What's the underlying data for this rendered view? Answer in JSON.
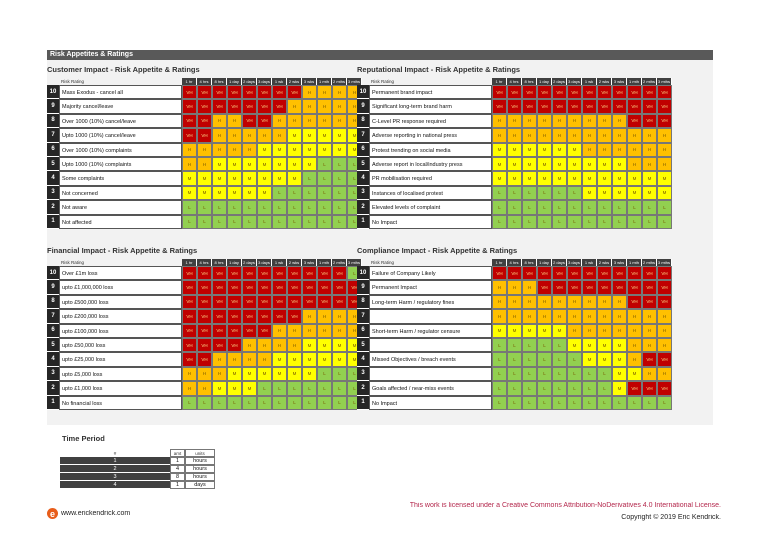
{
  "header": {
    "title": "Risk Appetites & Ratings"
  },
  "columns": [
    "1 hr",
    "4 hrs",
    "8 hrs",
    "1 day",
    "2 days",
    "3 days",
    "1 wk",
    "2 wks",
    "3 wks",
    "1 mth",
    "2 mths",
    "3 mths"
  ],
  "rating_header": "Risk Rating",
  "level_colors": {
    "VH": "#c00000",
    "H": "#ffc000",
    "M": "#ffff00",
    "L": "#92d050"
  },
  "matrices": [
    {
      "title": "Customer Impact - Risk Appetite & Ratings",
      "rows": [
        {
          "rating": "10",
          "label": "Mass Exodus - cancel all",
          "cells": [
            "VH",
            "VH",
            "VH",
            "VH",
            "VH",
            "VH",
            "VH",
            "VH",
            "H",
            "H",
            "H",
            "H"
          ]
        },
        {
          "rating": "9",
          "label": "Majority cancel/leave",
          "cells": [
            "VH",
            "VH",
            "VH",
            "VH",
            "VH",
            "VH",
            "VH",
            "H",
            "H",
            "H",
            "H",
            "H"
          ]
        },
        {
          "rating": "8",
          "label": "Over 1000 (10%) cancel/leave",
          "cells": [
            "VH",
            "VH",
            "H",
            "H",
            "VH",
            "VH",
            "H",
            "H",
            "H",
            "H",
            "H",
            "H"
          ]
        },
        {
          "rating": "7",
          "label": "Upto 1000 (10%) cancel/leave",
          "cells": [
            "VH",
            "VH",
            "H",
            "H",
            "H",
            "H",
            "H",
            "M",
            "M",
            "M",
            "M",
            "M"
          ]
        },
        {
          "rating": "6",
          "label": "Over 1000 (10%) complaints",
          "cells": [
            "H",
            "H",
            "H",
            "H",
            "H",
            "M",
            "M",
            "M",
            "M",
            "M",
            "M",
            "M"
          ]
        },
        {
          "rating": "5",
          "label": "Upto 1000 (10%) complaints",
          "cells": [
            "H",
            "H",
            "M",
            "M",
            "M",
            "M",
            "M",
            "M",
            "M",
            "L",
            "L",
            "L"
          ]
        },
        {
          "rating": "4",
          "label": "Some complaints",
          "cells": [
            "M",
            "M",
            "M",
            "M",
            "M",
            "M",
            "M",
            "M",
            "L",
            "L",
            "L",
            "L"
          ]
        },
        {
          "rating": "3",
          "label": "Not concerned",
          "cells": [
            "M",
            "M",
            "M",
            "M",
            "M",
            "M",
            "L",
            "L",
            "L",
            "L",
            "L",
            "L"
          ]
        },
        {
          "rating": "2",
          "label": "Not aware",
          "cells": [
            "L",
            "L",
            "L",
            "L",
            "L",
            "L",
            "L",
            "L",
            "L",
            "L",
            "L",
            "L"
          ]
        },
        {
          "rating": "1",
          "label": "Not affected",
          "cells": [
            "L",
            "L",
            "L",
            "L",
            "L",
            "L",
            "L",
            "L",
            "L",
            "L",
            "L",
            "L"
          ]
        }
      ]
    },
    {
      "title": "Reputational Impact - Risk Appetite & Ratings",
      "rows": [
        {
          "rating": "10",
          "label": "Permanent brand impact",
          "cells": [
            "VH",
            "VH",
            "VH",
            "VH",
            "VH",
            "VH",
            "VH",
            "VH",
            "VH",
            "VH",
            "VH",
            "VH"
          ]
        },
        {
          "rating": "9",
          "label": "Significant long-term brand harm",
          "cells": [
            "VH",
            "VH",
            "VH",
            "VH",
            "VH",
            "VH",
            "VH",
            "VH",
            "VH",
            "VH",
            "VH",
            "VH"
          ]
        },
        {
          "rating": "8",
          "label": "C-Level PR response required",
          "cells": [
            "H",
            "H",
            "H",
            "H",
            "H",
            "H",
            "H",
            "H",
            "H",
            "VH",
            "VH",
            "VH"
          ]
        },
        {
          "rating": "7",
          "label": "Adverse reporting in national press",
          "cells": [
            "H",
            "H",
            "H",
            "H",
            "H",
            "H",
            "H",
            "H",
            "H",
            "H",
            "H",
            "H"
          ]
        },
        {
          "rating": "6",
          "label": "Protest trending on social media",
          "cells": [
            "M",
            "M",
            "M",
            "M",
            "M",
            "M",
            "H",
            "H",
            "H",
            "H",
            "H",
            "H"
          ]
        },
        {
          "rating": "5",
          "label": "Adverse report in local/industry press",
          "cells": [
            "M",
            "M",
            "M",
            "M",
            "M",
            "M",
            "M",
            "M",
            "M",
            "H",
            "H",
            "H"
          ]
        },
        {
          "rating": "4",
          "label": "PR mobilisation required",
          "cells": [
            "M",
            "M",
            "M",
            "M",
            "M",
            "M",
            "M",
            "M",
            "M",
            "M",
            "M",
            "M"
          ]
        },
        {
          "rating": "3",
          "label": "Instances of localised protest",
          "cells": [
            "L",
            "L",
            "L",
            "L",
            "L",
            "L",
            "M",
            "M",
            "M",
            "M",
            "M",
            "M"
          ]
        },
        {
          "rating": "2",
          "label": "Elevated levels of complaint",
          "cells": [
            "L",
            "L",
            "L",
            "L",
            "L",
            "L",
            "L",
            "L",
            "L",
            "L",
            "L",
            "L"
          ]
        },
        {
          "rating": "1",
          "label": "No Impact",
          "cells": [
            "L",
            "L",
            "L",
            "L",
            "L",
            "L",
            "L",
            "L",
            "L",
            "L",
            "L",
            "L"
          ]
        }
      ]
    },
    {
      "title": "Financial Impact - Risk Appetite & Ratings",
      "rows": [
        {
          "rating": "10",
          "label": "Over £1m loss",
          "cells": [
            "VH",
            "VH",
            "VH",
            "VH",
            "VH",
            "VH",
            "VH",
            "VH",
            "VH",
            "VH",
            "VH",
            "L"
          ]
        },
        {
          "rating": "9",
          "label": "upto £1,000,000 loss",
          "cells": [
            "VH",
            "VH",
            "VH",
            "VH",
            "VH",
            "VH",
            "VH",
            "VH",
            "VH",
            "VH",
            "VH",
            "VH"
          ]
        },
        {
          "rating": "8",
          "label": "upto £500,000 loss",
          "cells": [
            "VH",
            "VH",
            "VH",
            "VH",
            "VH",
            "VH",
            "VH",
            "VH",
            "VH",
            "VH",
            "VH",
            "VH"
          ]
        },
        {
          "rating": "7",
          "label": "upto £200,000 loss",
          "cells": [
            "VH",
            "VH",
            "VH",
            "VH",
            "VH",
            "VH",
            "VH",
            "VH",
            "H",
            "H",
            "H",
            "H"
          ]
        },
        {
          "rating": "6",
          "label": "upto £100,000 loss",
          "cells": [
            "VH",
            "VH",
            "VH",
            "VH",
            "VH",
            "VH",
            "H",
            "H",
            "H",
            "H",
            "H",
            "H"
          ]
        },
        {
          "rating": "5",
          "label": "upto £50,000 loss",
          "cells": [
            "VH",
            "VH",
            "VH",
            "VH",
            "H",
            "H",
            "H",
            "H",
            "M",
            "M",
            "M",
            "M"
          ]
        },
        {
          "rating": "4",
          "label": "upto £25,000 loss",
          "cells": [
            "VH",
            "VH",
            "H",
            "H",
            "H",
            "H",
            "M",
            "M",
            "M",
            "M",
            "M",
            "M"
          ]
        },
        {
          "rating": "3",
          "label": "upto £5,000 loss",
          "cells": [
            "H",
            "H",
            "H",
            "M",
            "M",
            "M",
            "M",
            "M",
            "M",
            "L",
            "L",
            "L"
          ]
        },
        {
          "rating": "2",
          "label": "upto £1,000 loss",
          "cells": [
            "H",
            "H",
            "M",
            "M",
            "M",
            "L",
            "L",
            "L",
            "L",
            "L",
            "L",
            "L"
          ]
        },
        {
          "rating": "1",
          "label": "No financial loss",
          "cells": [
            "L",
            "L",
            "L",
            "L",
            "L",
            "L",
            "L",
            "L",
            "L",
            "L",
            "L",
            "L"
          ]
        }
      ]
    },
    {
      "title": "Compliance Impact - Risk Appetite & Ratings",
      "rows": [
        {
          "rating": "10",
          "label": "Failure of Company Likely",
          "cells": [
            "VH",
            "VH",
            "VH",
            "VH",
            "VH",
            "VH",
            "VH",
            "VH",
            "VH",
            "VH",
            "VH",
            "VH"
          ]
        },
        {
          "rating": "9",
          "label": "Permanent Impact",
          "cells": [
            "H",
            "H",
            "H",
            "VH",
            "VH",
            "VH",
            "VH",
            "VH",
            "VH",
            "VH",
            "VH",
            "VH"
          ]
        },
        {
          "rating": "8",
          "label": "Long-term Harm / regulatory fines",
          "cells": [
            "H",
            "H",
            "H",
            "H",
            "H",
            "H",
            "H",
            "H",
            "H",
            "VH",
            "VH",
            "VH"
          ]
        },
        {
          "rating": "7",
          "label": null,
          "cells": [
            "H",
            "H",
            "H",
            "H",
            "H",
            "H",
            "H",
            "H",
            "H",
            "H",
            "H",
            "H"
          ]
        },
        {
          "rating": "6",
          "label": "Short-term Harm / regulator censure",
          "cells": [
            "M",
            "M",
            "M",
            "M",
            "M",
            "H",
            "H",
            "H",
            "H",
            "H",
            "H",
            "H"
          ]
        },
        {
          "rating": "5",
          "label": null,
          "cells": [
            "L",
            "L",
            "L",
            "L",
            "L",
            "M",
            "M",
            "M",
            "M",
            "H",
            "H",
            "H"
          ]
        },
        {
          "rating": "4",
          "label": "Missed Objectives / breach events",
          "cells": [
            "L",
            "L",
            "L",
            "L",
            "L",
            "L",
            "M",
            "M",
            "M",
            "H",
            "VH",
            "VH"
          ]
        },
        {
          "rating": "3",
          "label": null,
          "cells": [
            "L",
            "L",
            "L",
            "L",
            "L",
            "L",
            "L",
            "L",
            "M",
            "M",
            "H",
            "H"
          ]
        },
        {
          "rating": "2",
          "label": "Goals affected / near-miss events",
          "cells": [
            "L",
            "L",
            "L",
            "L",
            "L",
            "L",
            "L",
            "L",
            "M",
            "VH",
            "VH",
            "VH"
          ]
        },
        {
          "rating": "1",
          "label": "No Impact",
          "cells": [
            "L",
            "L",
            "L",
            "L",
            "L",
            "L",
            "L",
            "L",
            "L",
            "L",
            "L",
            "L"
          ]
        }
      ]
    }
  ],
  "time_period": {
    "title": "Time Period",
    "headers": [
      "#",
      "amt",
      "units"
    ],
    "rows": [
      [
        "1",
        "1",
        "hours"
      ],
      [
        "2",
        "4",
        "hours"
      ],
      [
        "3",
        "8",
        "hours"
      ],
      [
        "4",
        "1",
        "days"
      ]
    ]
  },
  "footer": {
    "website": "www.erickendrick.com",
    "license": "This work is licensed under a Creative Commons Attribution-NoDerivatives 4.0 International License.",
    "copyright": "Copyright © 2019 Eric Kendrick."
  }
}
